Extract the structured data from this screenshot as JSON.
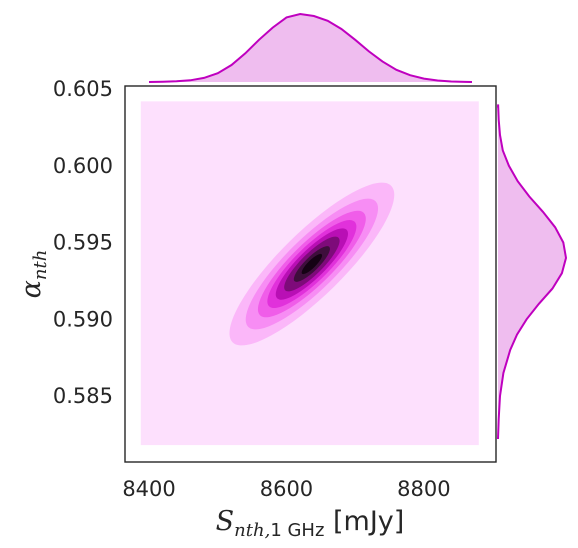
{
  "chart_data": {
    "type": "joint-kde",
    "title": "",
    "xlabel": {
      "symbol": "S",
      "subscript_math": "nth,",
      "subscript_text": "1 GHz",
      "unit": " [mJy]"
    },
    "ylabel": {
      "symbol": "α",
      "subscript_math": "nth"
    },
    "x_ticks": [
      {
        "value": 8400,
        "label": "8400"
      },
      {
        "value": 8600,
        "label": "8600"
      },
      {
        "value": 8800,
        "label": "8800"
      }
    ],
    "y_ticks": [
      {
        "value": 0.585,
        "label": "0.585"
      },
      {
        "value": 0.59,
        "label": "0.590"
      },
      {
        "value": 0.595,
        "label": "0.595"
      },
      {
        "value": 0.6,
        "label": "0.600"
      },
      {
        "value": 0.605,
        "label": "0.605"
      }
    ],
    "xlim": [
      8365,
      8905
    ],
    "ylim": [
      0.5807,
      0.6052
    ],
    "grid": false,
    "joint": {
      "center": [
        8637,
        0.5936
      ],
      "std": [
        52,
        0.0023
      ],
      "correlation": 0.85,
      "support_x": [
        8388,
        8880
      ],
      "support_y": [
        0.5818,
        0.6042
      ],
      "levels": [
        0.07,
        0.18,
        0.32,
        0.46,
        0.6,
        0.74,
        0.88
      ],
      "background_color": "#fde0fd",
      "fill_colors": [
        "#fbb7f9",
        "#f78df4",
        "#f05de9",
        "#e131db",
        "#b90fb5",
        "#7e0b7a",
        "#3e0e3c",
        "#150214"
      ]
    },
    "marginal_x": {
      "x": [
        8400,
        8420,
        8440,
        8460,
        8480,
        8500,
        8520,
        8540,
        8560,
        8580,
        8600,
        8620,
        8640,
        8660,
        8680,
        8700,
        8720,
        8740,
        8760,
        8780,
        8800,
        8820,
        8840,
        8860,
        8870
      ],
      "density": [
        0.0,
        0.003,
        0.01,
        0.025,
        0.06,
        0.13,
        0.25,
        0.42,
        0.62,
        0.8,
        0.95,
        1.0,
        0.97,
        0.9,
        0.78,
        0.62,
        0.45,
        0.3,
        0.18,
        0.1,
        0.05,
        0.022,
        0.008,
        0.002,
        0.0
      ]
    },
    "marginal_y": {
      "y": [
        0.5822,
        0.5835,
        0.585,
        0.5865,
        0.588,
        0.589,
        0.59,
        0.591,
        0.592,
        0.593,
        0.594,
        0.595,
        0.596,
        0.597,
        0.598,
        0.599,
        0.6,
        0.601,
        0.602,
        0.603,
        0.604,
        0.6038
      ],
      "density": [
        0.0,
        0.01,
        0.03,
        0.08,
        0.18,
        0.28,
        0.42,
        0.6,
        0.8,
        0.94,
        1.0,
        0.96,
        0.84,
        0.66,
        0.46,
        0.29,
        0.16,
        0.07,
        0.03,
        0.01,
        0.002,
        0.0
      ]
    },
    "marginal_color": "#bf00bf",
    "marginal_fill": "#efbdef"
  }
}
